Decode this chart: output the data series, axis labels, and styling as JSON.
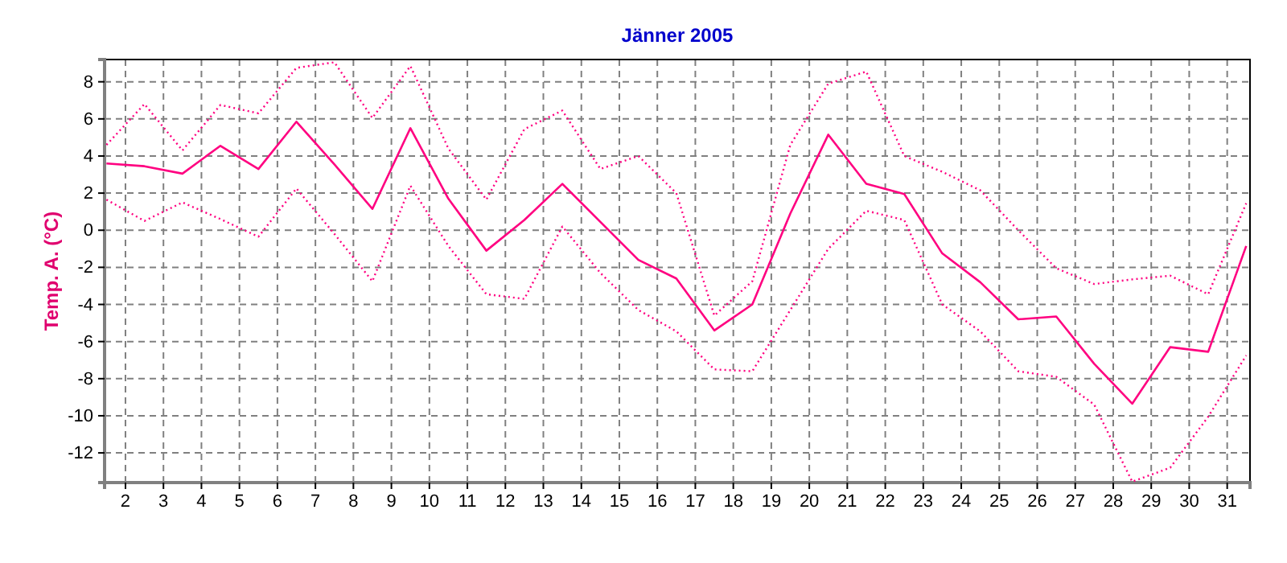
{
  "chart_data": {
    "type": "line",
    "title": "Jänner 2005",
    "ylabel": "Temp. A. (°C)",
    "x": [
      1.5,
      2.5,
      3.5,
      4.5,
      5.5,
      6.5,
      7.5,
      8.5,
      9.5,
      10.5,
      11.5,
      12.5,
      13.5,
      14.5,
      15.5,
      16.5,
      17.5,
      18.5,
      19.5,
      20.5,
      21.5,
      22.5,
      23.5,
      24.5,
      25.5,
      26.5,
      27.5,
      28.5,
      29.5,
      30.5,
      31.5
    ],
    "series": [
      {
        "color": "#ff0080",
        "line_style": "dotted",
        "values": [
          4.6,
          6.8,
          4.3,
          6.75,
          6.3,
          8.75,
          9.05,
          6.05,
          8.85,
          4.4,
          1.65,
          5.45,
          6.45,
          3.3,
          4.0,
          2.0,
          -4.6,
          -2.75,
          4.6,
          7.9,
          8.55,
          4.0,
          3.15,
          2.15,
          0,
          -2.05,
          -2.9,
          -2.65,
          -2.45,
          -3.45,
          1.45
        ]
      },
      {
        "color": "#ff0080",
        "line_style": "solid",
        "values": [
          3.6,
          3.45,
          3.05,
          4.55,
          3.3,
          5.85,
          3.55,
          1.15,
          5.5,
          1.7,
          -1.1,
          0.55,
          2.5,
          0.45,
          -1.6,
          -2.6,
          -5.4,
          -4.0,
          0.9,
          5.15,
          2.5,
          1.95,
          -1.25,
          -2.8,
          -4.8,
          -4.65,
          -7.2,
          -9.35,
          -6.3,
          -6.55,
          -0.85
        ]
      },
      {
        "color": "#ff0080",
        "line_style": "dotted",
        "values": [
          1.65,
          0.5,
          1.5,
          0.6,
          -0.35,
          2.25,
          -0.2,
          -2.75,
          2.4,
          -0.85,
          -3.45,
          -3.7,
          0.2,
          -2.3,
          -4.3,
          -5.45,
          -7.5,
          -7.6,
          -4.3,
          -1.0,
          1.05,
          0.55,
          -4.0,
          -5.45,
          -7.6,
          -7.9,
          -9.4,
          -13.55,
          -12.8,
          -10.05,
          -6.75
        ]
      }
    ],
    "xlim": [
      1.45,
      31.6
    ],
    "xticks": [
      2,
      3,
      4,
      5,
      6,
      7,
      8,
      9,
      10,
      11,
      12,
      13,
      14,
      15,
      16,
      17,
      18,
      19,
      20,
      21,
      22,
      23,
      24,
      25,
      26,
      27,
      28,
      29,
      30,
      31
    ],
    "ylim": [
      -13.6,
      9.2
    ],
    "yticks": [
      -12,
      -10,
      -8,
      -6,
      -4,
      -2,
      0,
      2,
      4,
      6,
      8
    ],
    "grid": true
  }
}
